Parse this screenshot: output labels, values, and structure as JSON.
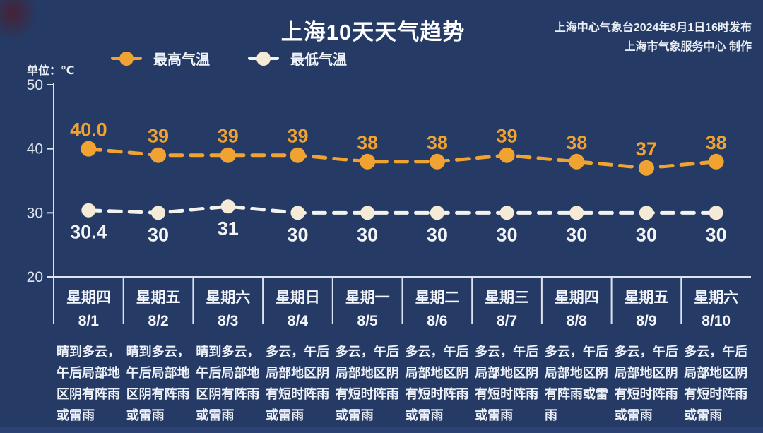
{
  "header": {
    "title": "上海10天天气趋势",
    "source_line1": "上海中心气象台2024年8月1日16时发布",
    "source_line2": "上海市气象服务中心 制作",
    "unit_label": "单位：℃"
  },
  "legend": [
    {
      "label": "最高气温",
      "line_color": "#f0a331",
      "dot_color": "#f0a331"
    },
    {
      "label": "最低气温",
      "line_color": "#f2f2ee",
      "dot_color": "#f5ead5"
    }
  ],
  "colors": {
    "background": "#253a64",
    "axis": "#dde4f0",
    "high": "#f0a331",
    "low_line": "#f2f2ee",
    "low_marker": "#f5ead5",
    "low_label": "#f3f4f6",
    "bottom_strip": "#2d4274"
  },
  "chart_data": {
    "type": "line",
    "title": "上海10天天气趋势",
    "unit": "℃",
    "line_style": "dashed",
    "grid": false,
    "legend_position": "top-left",
    "ylim": [
      20,
      50
    ],
    "yticks": [
      50,
      40,
      30,
      20
    ],
    "x": [
      "8/1",
      "8/2",
      "8/3",
      "8/4",
      "8/5",
      "8/6",
      "8/7",
      "8/8",
      "8/9",
      "8/10"
    ],
    "series": [
      {
        "name": "最高气温",
        "values": [
          40.0,
          39,
          39,
          39,
          38,
          38,
          39,
          38,
          37,
          38
        ],
        "labels": [
          "40.0",
          "39",
          "39",
          "39",
          "38",
          "38",
          "39",
          "38",
          "37",
          "38"
        ],
        "color": "#f0a331",
        "marker_color": "#f0a331",
        "label_color": "#f0a331",
        "label_position": "above"
      },
      {
        "name": "最低气温",
        "values": [
          30.4,
          30,
          31,
          30,
          30,
          30,
          30,
          30,
          30,
          30
        ],
        "labels": [
          "30.4",
          "30",
          "31",
          "30",
          "30",
          "30",
          "30",
          "30",
          "30",
          "30"
        ],
        "color": "#f2f2ee",
        "marker_color": "#f5ead5",
        "label_color": "#f3f4f6",
        "label_position": "below"
      }
    ]
  },
  "days": [
    {
      "weekday": "星期四",
      "date": "8/1",
      "desc": "晴到多云，午后局部地区阴有阵雨或雷雨"
    },
    {
      "weekday": "星期五",
      "date": "8/2",
      "desc": "晴到多云，午后局部地区阴有阵雨或雷雨"
    },
    {
      "weekday": "星期六",
      "date": "8/3",
      "desc": "晴到多云，午后局部地区阴有阵雨或雷雨"
    },
    {
      "weekday": "星期日",
      "date": "8/4",
      "desc": "多云，午后局部地区阴有短时阵雨或雷雨"
    },
    {
      "weekday": "星期一",
      "date": "8/5",
      "desc": "多云，午后局部地区阴有短时阵雨或雷雨"
    },
    {
      "weekday": "星期二",
      "date": "8/6",
      "desc": "多云，午后局部地区阴有短时阵雨或雷雨"
    },
    {
      "weekday": "星期三",
      "date": "8/7",
      "desc": "多云，午后局部地区阴有短时阵雨或雷雨"
    },
    {
      "weekday": "星期四",
      "date": "8/8",
      "desc": "多云，午后局部地区阴有阵雨或雷雨"
    },
    {
      "weekday": "星期五",
      "date": "8/9",
      "desc": "多云，午后局部地区阴有短时阵雨或雷雨"
    },
    {
      "weekday": "星期六",
      "date": "8/10",
      "desc": "多云，午后局部地区阴有短时阵雨或雷雨"
    }
  ]
}
